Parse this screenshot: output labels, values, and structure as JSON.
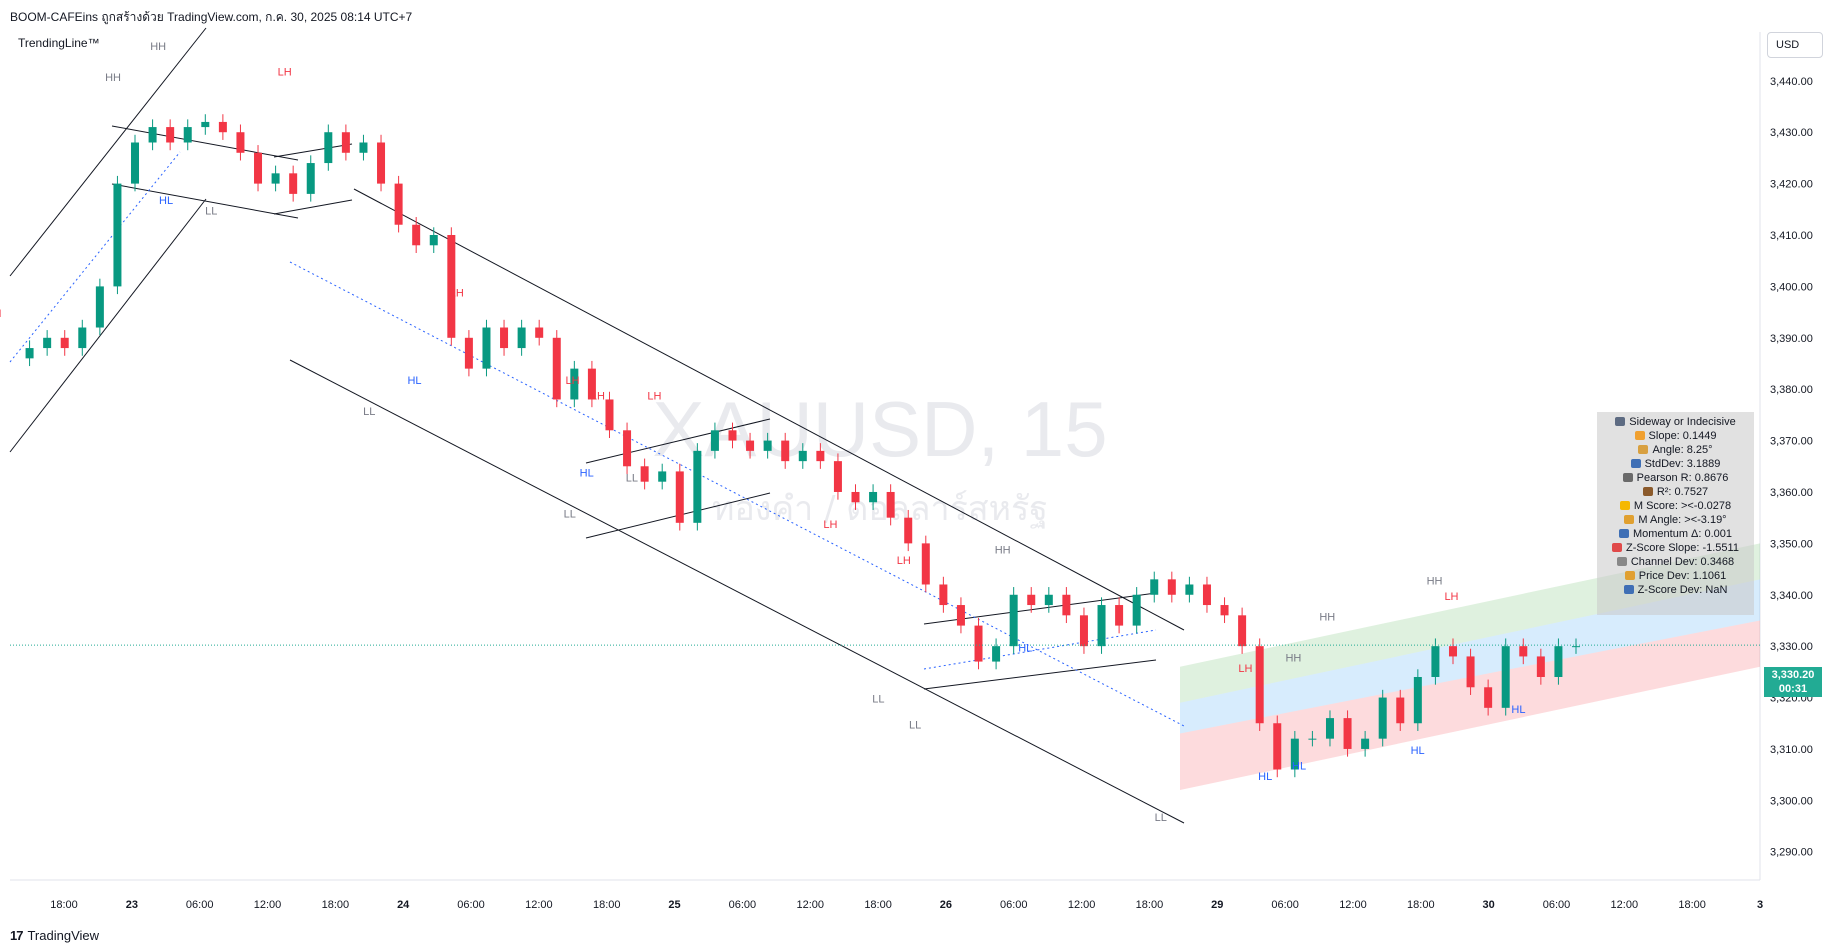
{
  "header": {
    "title": "BOOM-CAFEins ถูกสร้างด้วย TradingView.com, ก.ค. 30, 2025 08:14 UTC+7",
    "indicator": "TrendingLine™",
    "currency": "USD"
  },
  "watermark": {
    "symbol": "XAUUSD, 15",
    "subtitle": "ทองคำ / ดอลลาร์สหรัฐ"
  },
  "footer": {
    "brand": "TradingView",
    "brand_mark": "17"
  },
  "current_price": {
    "value": "3,330.20",
    "countdown": "00:31",
    "color": "#22ab94"
  },
  "stats_panel": [
    {
      "icon": "magnifier-icon",
      "text": "Sideway or Indecisive"
    },
    {
      "icon": "hand-icon",
      "text": "Slope: 0.1449"
    },
    {
      "icon": "ruler-icon",
      "text": "Angle: 8.25°"
    },
    {
      "icon": "bar-chart-icon",
      "text": "StdDev: 3.1889"
    },
    {
      "icon": "link-icon",
      "text": "Pearson R: 0.8676"
    },
    {
      "icon": "abacus-icon",
      "text": "R²: 0.7527"
    },
    {
      "icon": "lightning-icon",
      "text": "M Score: ><-0.0278"
    },
    {
      "icon": "triangle-ruler-icon",
      "text": "M Angle: ><-3.19°"
    },
    {
      "icon": "bar-chart-icon",
      "text": "Momentum Δ: 0.001"
    },
    {
      "icon": "chart-up-icon",
      "text": "Z-Score Slope: -1.5511"
    },
    {
      "icon": "thermometer-icon",
      "text": "Channel Dev: 0.3468"
    },
    {
      "icon": "triangle-ruler-icon",
      "text": "Price Dev: 1.1061"
    },
    {
      "icon": "bar-chart-icon",
      "text": "Z-Score Dev: NaN"
    }
  ],
  "colors": {
    "up": "#089981",
    "down": "#f23645",
    "channel_line": "#131722",
    "trend_dotted": "#2962ff",
    "price_line": "#22ab94"
  },
  "chart_data": {
    "type": "candlestick",
    "y_ticks": [
      "3,290.00",
      "3,300.00",
      "3,310.00",
      "3,320.00",
      "3,330.00",
      "3,340.00",
      "3,350.00",
      "3,360.00",
      "3,370.00",
      "3,380.00",
      "3,390.00",
      "3,400.00",
      "3,410.00",
      "3,420.00",
      "3,430.00",
      "3,440.00"
    ],
    "y_tick_values": [
      3290,
      3300,
      3310,
      3320,
      3330,
      3340,
      3350,
      3360,
      3370,
      3380,
      3390,
      3400,
      3410,
      3420,
      3430,
      3440
    ],
    "ylim": [
      3284.5,
      3449.5
    ],
    "x_ticks": [
      "18:00",
      "23",
      "06:00",
      "12:00",
      "18:00",
      "24",
      "06:00",
      "12:00",
      "18:00",
      "25",
      "06:00",
      "12:00",
      "18:00",
      "26",
      "06:00",
      "12:00",
      "18:00",
      "29",
      "06:00",
      "12:00",
      "18:00",
      "30",
      "06:00",
      "12:00",
      "18:00",
      "3"
    ],
    "x_bold_ticks": [
      "23",
      "24",
      "25",
      "26",
      "29",
      "30",
      "3"
    ],
    "price_path": [
      3386,
      3388,
      3390,
      3388,
      3392,
      3400,
      3420,
      3428,
      3431,
      3428,
      3431,
      3432,
      3430,
      3426,
      3420,
      3422,
      3418,
      3424,
      3430,
      3426,
      3428,
      3420,
      3412,
      3408,
      3410,
      3390,
      3384,
      3392,
      3388,
      3392,
      3390,
      3378,
      3384,
      3378,
      3372,
      3365,
      3362,
      3364,
      3354,
      3368,
      3372,
      3370,
      3368,
      3370,
      3366,
      3368,
      3366,
      3360,
      3358,
      3360,
      3355,
      3350,
      3342,
      3338,
      3334,
      3327,
      3330,
      3340,
      3338,
      3340,
      3336,
      3330,
      3338,
      3334,
      3340,
      3343,
      3340,
      3342,
      3338,
      3336,
      3330,
      3315,
      3306,
      3312,
      3312,
      3316,
      3310,
      3312,
      3320,
      3315,
      3324,
      3330,
      3328,
      3322,
      3318,
      3330,
      3328,
      3324,
      3330,
      3330
    ],
    "swing_labels": [
      {
        "text": "HH",
        "x": "22 23:45",
        "y": 3446
      },
      {
        "text": "HH",
        "x": "22 19:45",
        "y": 3440
      },
      {
        "text": "LH",
        "x": "23 13:15",
        "y": 3441
      },
      {
        "text": "HL",
        "x": "23 02:45",
        "y": 3416
      },
      {
        "text": "LL",
        "x": "23 06:45",
        "y": 3414
      },
      {
        "text": "LH",
        "x": "22 09:15",
        "y": 3394
      },
      {
        "text": "LL",
        "x": "22 08:45",
        "y": 3377
      },
      {
        "text": "LH",
        "x": "24 04:30",
        "y": 3398
      },
      {
        "text": "HL",
        "x": "24 00:45",
        "y": 3381
      },
      {
        "text": "LL",
        "x": "23 20:45",
        "y": 3375
      },
      {
        "text": "LH",
        "x": "24 14:45",
        "y": 3381
      },
      {
        "text": "LH",
        "x": "24 17:00",
        "y": 3378
      },
      {
        "text": "LH",
        "x": "24 22:00",
        "y": 3378
      },
      {
        "text": "HL",
        "x": "24 16:00",
        "y": 3363
      },
      {
        "text": "LL",
        "x": "24 20:00",
        "y": 3362
      },
      {
        "text": "LL",
        "x": "24 14:30",
        "y": 3355
      },
      {
        "text": "LH",
        "x": "25 13:30",
        "y": 3353
      },
      {
        "text": "LH",
        "x": "25 20:00",
        "y": 3346
      },
      {
        "text": "HH",
        "x": "26 04:45",
        "y": 3348
      },
      {
        "text": "HL",
        "x": "26 06:45",
        "y": 3329
      },
      {
        "text": "LL",
        "x": "25 17:45",
        "y": 3319
      },
      {
        "text": "LL",
        "x": "25 21:00",
        "y": 3314
      },
      {
        "text": "LL",
        "x": "26 18:45",
        "y": 3296
      },
      {
        "text": "LH",
        "x": "29 02:15",
        "y": 3325
      },
      {
        "text": "HH",
        "x": "29 06:30",
        "y": 3327
      },
      {
        "text": "HH",
        "x": "29 09:30",
        "y": 3335
      },
      {
        "text": "HH",
        "x": "29 19:00",
        "y": 3342
      },
      {
        "text": "LH",
        "x": "29 20:30",
        "y": 3339
      },
      {
        "text": "HL",
        "x": "29 04:00",
        "y": 3304
      },
      {
        "text": "HL",
        "x": "29 07:00",
        "y": 3306
      },
      {
        "text": "HL",
        "x": "29 17:30",
        "y": 3309
      },
      {
        "text": "HL",
        "x": "30 02:15",
        "y": 3317
      }
    ]
  }
}
